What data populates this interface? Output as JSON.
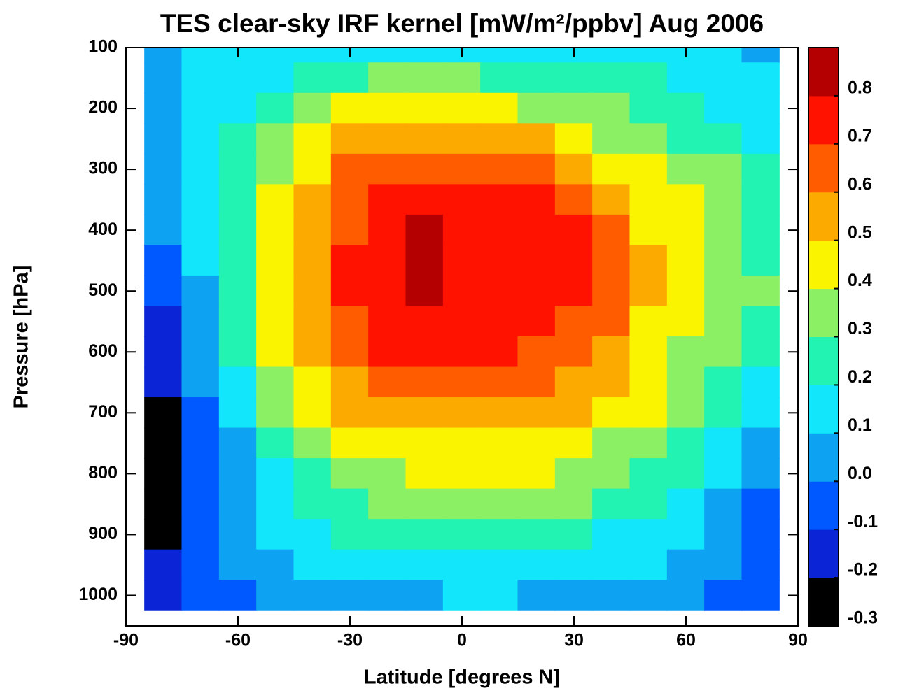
{
  "chart_data": {
    "type": "contour",
    "title": "TES clear-sky IRF kernel [mW/m²/ppbv] Aug 2006",
    "x_label": "Latitude [degrees N]",
    "y_label": "Pressure [hPa]",
    "x": [
      -80,
      -70,
      -60,
      -50,
      -40,
      -30,
      -20,
      -10,
      0,
      10,
      20,
      30,
      40,
      50,
      60,
      70,
      80
    ],
    "y": [
      100,
      150,
      200,
      250,
      300,
      350,
      400,
      450,
      500,
      550,
      600,
      650,
      700,
      750,
      800,
      850,
      900,
      950,
      1000
    ],
    "z": [
      [
        0.05,
        0.1,
        0.15,
        0.15,
        0.15,
        0.15,
        0.15,
        0.15,
        0.15,
        0.15,
        0.15,
        0.15,
        0.15,
        0.15,
        0.15,
        0.12,
        0.05
      ],
      [
        0.05,
        0.12,
        0.15,
        0.18,
        0.25,
        0.28,
        0.3,
        0.3,
        0.3,
        0.28,
        0.25,
        0.22,
        0.2,
        0.2,
        0.15,
        0.15,
        0.1
      ],
      [
        0.05,
        0.12,
        0.18,
        0.25,
        0.35,
        0.42,
        0.45,
        0.45,
        0.45,
        0.42,
        0.38,
        0.35,
        0.3,
        0.25,
        0.2,
        0.18,
        0.12
      ],
      [
        0.05,
        0.15,
        0.22,
        0.32,
        0.42,
        0.5,
        0.55,
        0.55,
        0.55,
        0.55,
        0.52,
        0.45,
        0.38,
        0.32,
        0.28,
        0.22,
        0.15
      ],
      [
        0.05,
        0.15,
        0.25,
        0.38,
        0.48,
        0.6,
        0.65,
        0.68,
        0.65,
        0.65,
        0.62,
        0.55,
        0.48,
        0.42,
        0.35,
        0.3,
        0.2
      ],
      [
        0.05,
        0.15,
        0.28,
        0.42,
        0.52,
        0.65,
        0.72,
        0.75,
        0.72,
        0.72,
        0.7,
        0.65,
        0.55,
        0.45,
        0.4,
        0.35,
        0.25
      ],
      [
        0.0,
        0.12,
        0.28,
        0.45,
        0.55,
        0.68,
        0.75,
        0.8,
        0.75,
        0.75,
        0.72,
        0.7,
        0.6,
        0.48,
        0.42,
        0.35,
        0.28
      ],
      [
        -0.05,
        0.1,
        0.28,
        0.45,
        0.58,
        0.7,
        0.78,
        0.82,
        0.75,
        0.75,
        0.75,
        0.72,
        0.62,
        0.5,
        0.42,
        0.35,
        0.28
      ],
      [
        -0.1,
        0.08,
        0.25,
        0.45,
        0.58,
        0.72,
        0.78,
        0.8,
        0.75,
        0.75,
        0.75,
        0.72,
        0.62,
        0.5,
        0.42,
        0.35,
        0.3
      ],
      [
        -0.12,
        0.05,
        0.22,
        0.42,
        0.55,
        0.68,
        0.75,
        0.75,
        0.72,
        0.72,
        0.72,
        0.68,
        0.6,
        0.48,
        0.4,
        0.35,
        0.25
      ],
      [
        -0.15,
        0.02,
        0.2,
        0.4,
        0.52,
        0.62,
        0.7,
        0.72,
        0.7,
        0.7,
        0.68,
        0.62,
        0.55,
        0.45,
        0.38,
        0.3,
        0.2
      ],
      [
        -0.2,
        0.0,
        0.15,
        0.35,
        0.48,
        0.55,
        0.62,
        0.65,
        0.65,
        0.62,
        0.6,
        0.55,
        0.5,
        0.42,
        0.35,
        0.28,
        0.15
      ],
      [
        -0.25,
        -0.02,
        0.1,
        0.3,
        0.42,
        0.5,
        0.55,
        0.58,
        0.58,
        0.55,
        0.52,
        0.5,
        0.45,
        0.4,
        0.32,
        0.22,
        0.1
      ],
      [
        -0.3,
        -0.05,
        0.08,
        0.22,
        0.35,
        0.42,
        0.45,
        0.48,
        0.48,
        0.45,
        0.45,
        0.42,
        0.38,
        0.35,
        0.28,
        0.18,
        0.05
      ],
      [
        -0.35,
        -0.08,
        0.05,
        0.18,
        0.28,
        0.35,
        0.38,
        0.4,
        0.4,
        0.42,
        0.42,
        0.38,
        0.32,
        0.28,
        0.22,
        0.12,
        0.0
      ],
      [
        -0.3,
        -0.1,
        0.05,
        0.15,
        0.22,
        0.28,
        0.3,
        0.32,
        0.35,
        0.35,
        0.35,
        0.3,
        0.25,
        0.22,
        0.15,
        0.08,
        -0.02
      ],
      [
        -0.25,
        -0.1,
        0.02,
        0.1,
        0.15,
        0.2,
        0.22,
        0.25,
        0.25,
        0.25,
        0.25,
        0.22,
        0.18,
        0.15,
        0.1,
        0.05,
        -0.05
      ],
      [
        -0.2,
        -0.1,
        0.0,
        0.05,
        0.1,
        0.12,
        0.15,
        0.15,
        0.18,
        0.18,
        0.15,
        0.15,
        0.12,
        0.1,
        0.05,
        0.0,
        -0.05
      ],
      [
        -0.15,
        -0.08,
        -0.05,
        0.02,
        0.05,
        0.05,
        0.08,
        0.08,
        0.1,
        0.1,
        0.08,
        0.08,
        0.05,
        0.05,
        0.0,
        -0.05,
        -0.08
      ]
    ],
    "xlim": [
      -90,
      90
    ],
    "xticks": [
      -90,
      -60,
      -30,
      0,
      30,
      60,
      90
    ],
    "ylim": [
      1050,
      100
    ],
    "yticks": [
      100,
      200,
      300,
      400,
      500,
      600,
      700,
      800,
      900,
      1000
    ],
    "colorbar": {
      "levels": [
        -0.3,
        -0.2,
        -0.1,
        0,
        0.1,
        0.2,
        0.3,
        0.4,
        0.5,
        0.6,
        0.7,
        0.8,
        0.9
      ],
      "colors": [
        "#000000",
        "#0a24d6",
        "#0058ff",
        "#0ea2f2",
        "#12e6fa",
        "#22f2b2",
        "#8cf064",
        "#faf400",
        "#fcaa00",
        "#ff5c00",
        "#ff1200",
        "#b40000"
      ],
      "ticks": [
        -0.3,
        -0.2,
        -0.1,
        {
          "value": 0,
          "label": "0.0"
        },
        0.1,
        0.2,
        0.3,
        0.4,
        0.5,
        0.6,
        0.7,
        0.8
      ]
    }
  }
}
